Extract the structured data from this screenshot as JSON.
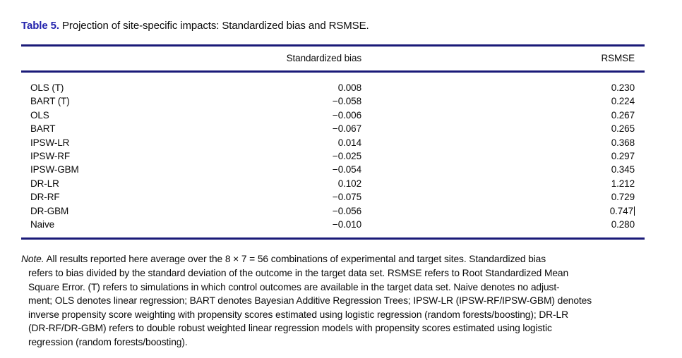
{
  "page": {
    "title_label": "Table 5.",
    "title_text": " Projection of site-specific impacts: Standardized bias and RSMSE."
  },
  "table": {
    "columns": {
      "method": "",
      "bias": "Standardized bias",
      "rsmse": "RSMSE"
    },
    "rows": [
      {
        "method": "OLS (T)",
        "bias": "0.008",
        "rsmse": "0.230"
      },
      {
        "method": "BART (T)",
        "bias": "−0.058",
        "rsmse": "0.224"
      },
      {
        "method": "OLS",
        "bias": "−0.006",
        "rsmse": "0.267"
      },
      {
        "method": "BART",
        "bias": "−0.067",
        "rsmse": "0.265"
      },
      {
        "method": "IPSW-LR",
        "bias": "0.014",
        "rsmse": "0.368"
      },
      {
        "method": "IPSW-RF",
        "bias": "−0.025",
        "rsmse": "0.297"
      },
      {
        "method": "IPSW-GBM",
        "bias": "−0.054",
        "rsmse": "0.345"
      },
      {
        "method": "DR-LR",
        "bias": "0.102",
        "rsmse": "1.212"
      },
      {
        "method": "DR-RF",
        "bias": "−0.075",
        "rsmse": "0.729"
      },
      {
        "method": "DR-GBM",
        "bias": "−0.056",
        "rsmse": "0.747"
      },
      {
        "method": "Naive",
        "bias": "−0.010",
        "rsmse": "0.280"
      }
    ]
  },
  "note": {
    "label": "Note.",
    "lines": [
      " All results reported here average over the 8 × 7 = 56 combinations of experimental and target sites. Standardized bias",
      "refers to bias divided by the standard deviation of the outcome in the target data set. RSMSE refers to Root Standardized Mean",
      "Square Error. (T) refers to simulations in which control outcomes are available in the target data set. Naive denotes no adjust-",
      "ment; OLS denotes linear regression; BART denotes Bayesian Additive Regression Trees; IPSW-LR (IPSW-RF/IPSW-GBM) denotes",
      "inverse propensity score weighting with propensity scores estimated using logistic regression (random forests/boosting); DR-LR",
      "(DR-RF/DR-GBM) refers to double robust weighted linear regression models with propensity scores estimated using logistic",
      "regression (random forests/boosting)."
    ]
  },
  "colors": {
    "title_blue": "#2424ad",
    "rule_navy": "#1a1a78",
    "text": "#0a0a0a"
  }
}
